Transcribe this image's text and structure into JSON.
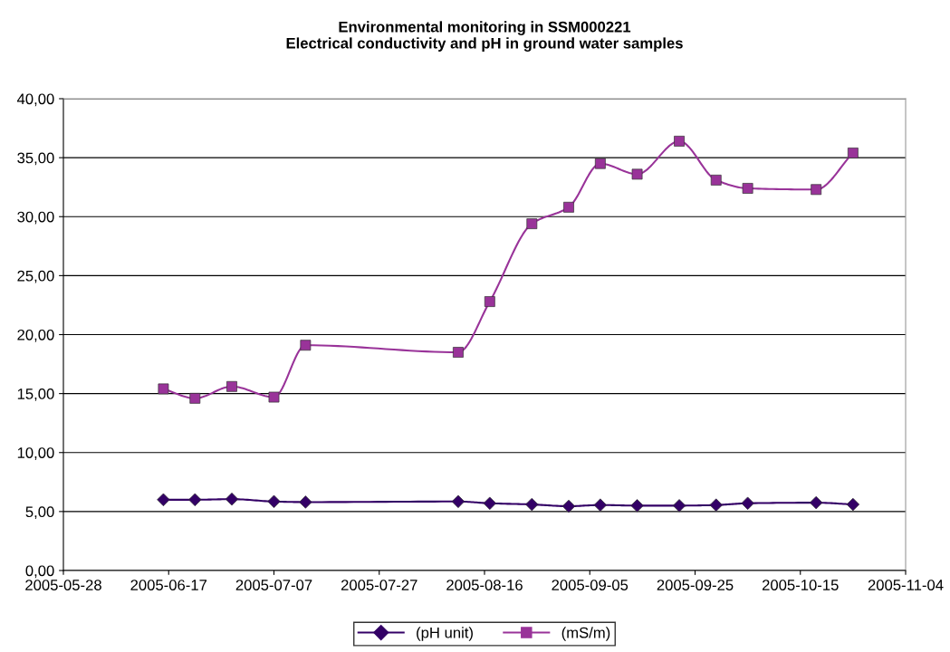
{
  "chart_data": {
    "type": "line",
    "title": "Environmental monitoring in SSM000221\nElectrical conductivity and pH in ground water samples",
    "x": [
      "2005-06-16",
      "2005-06-22",
      "2005-06-29",
      "2005-07-07",
      "2005-07-13",
      "2005-08-11",
      "2005-08-17",
      "2005-08-25",
      "2005-09-01",
      "2005-09-07",
      "2005-09-14",
      "2005-09-22",
      "2005-09-29",
      "2005-10-05",
      "2005-10-18",
      "2005-10-25"
    ],
    "series": [
      {
        "name": "(pH unit)",
        "color": "#330066",
        "marker": "diamond",
        "values": [
          6.0,
          6.0,
          6.05,
          5.85,
          5.8,
          5.85,
          5.7,
          5.6,
          5.45,
          5.55,
          5.5,
          5.5,
          5.55,
          5.7,
          5.75,
          5.6
        ]
      },
      {
        "name": "(mS/m)",
        "color": "#993399",
        "marker": "square",
        "values": [
          15.4,
          14.6,
          15.6,
          14.7,
          19.1,
          18.5,
          22.8,
          29.4,
          30.8,
          34.5,
          33.6,
          36.4,
          33.1,
          32.4,
          32.3,
          35.4
        ]
      }
    ],
    "xlim": [
      "2005-05-28",
      "2005-11-04"
    ],
    "xticks": [
      "2005-05-28",
      "2005-06-17",
      "2005-07-07",
      "2005-07-27",
      "2005-08-16",
      "2005-09-05",
      "2005-09-25",
      "2005-10-15",
      "2005-11-04"
    ],
    "ylim": [
      0,
      40
    ],
    "yticks": [
      {
        "value": 0,
        "label": "0,00"
      },
      {
        "value": 5,
        "label": "5,00"
      },
      {
        "value": 10,
        "label": "10,00"
      },
      {
        "value": 15,
        "label": "15,00"
      },
      {
        "value": 20,
        "label": "20,00"
      },
      {
        "value": 25,
        "label": "25,00"
      },
      {
        "value": 30,
        "label": "30,00"
      },
      {
        "value": 35,
        "label": "35,00"
      },
      {
        "value": 40,
        "label": "40,00"
      }
    ],
    "grid": "y",
    "legend": "bottom",
    "line_style": "solid"
  }
}
